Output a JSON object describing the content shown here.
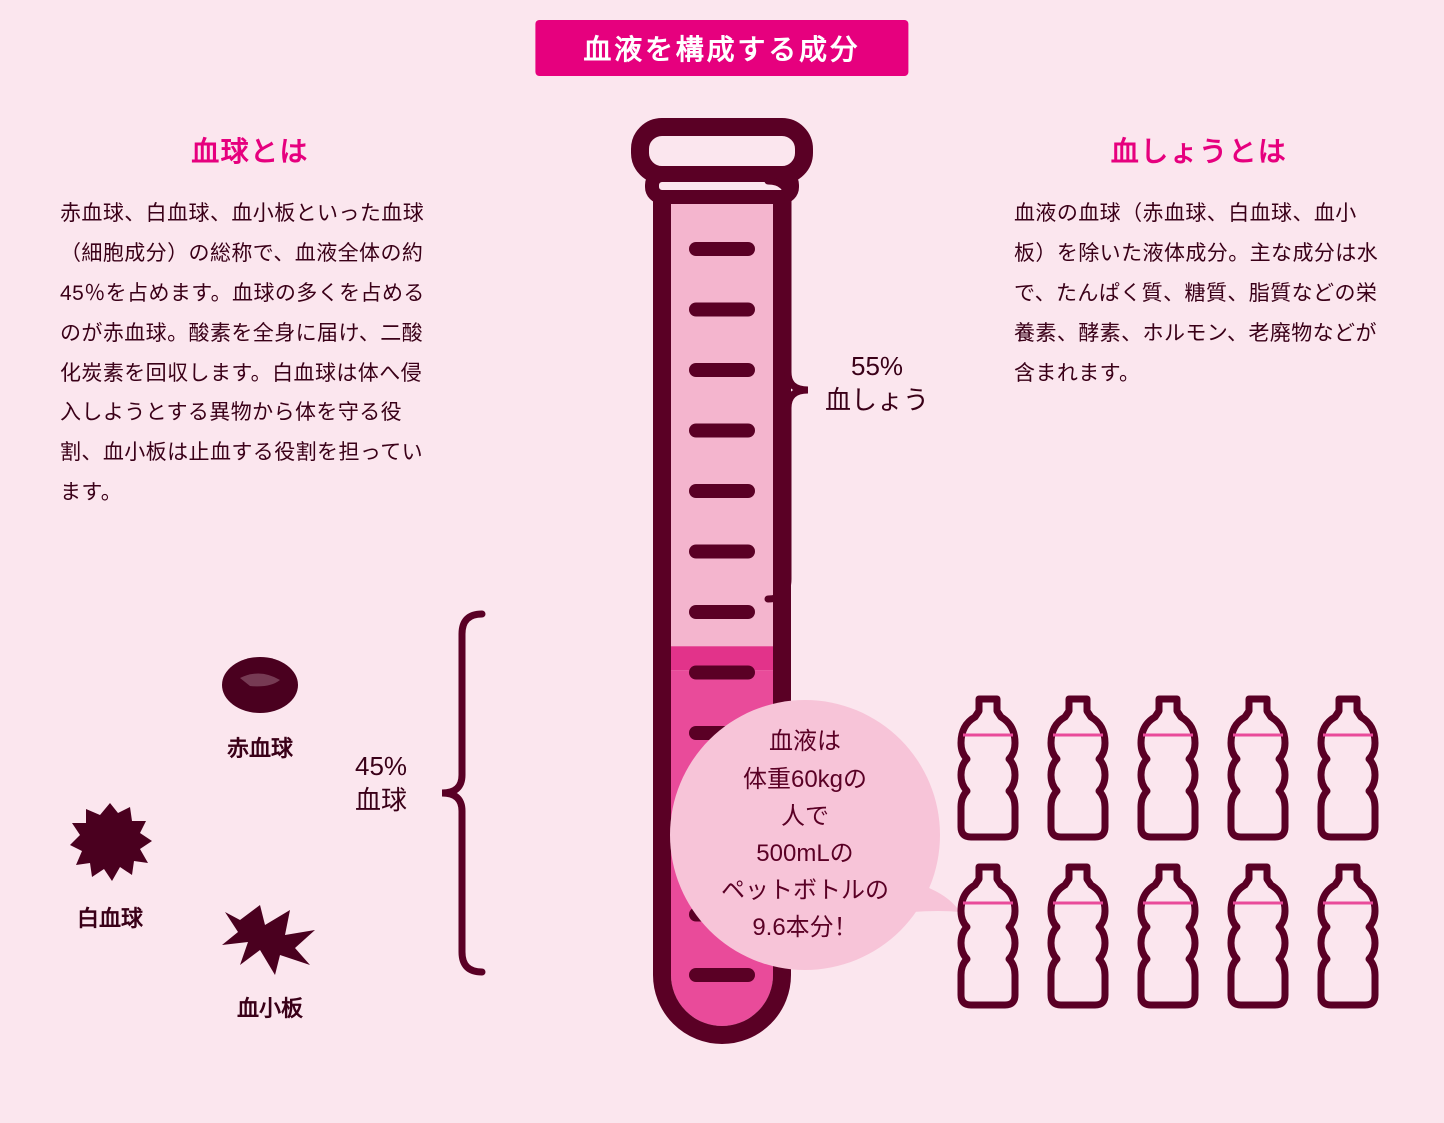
{
  "colors": {
    "background": "#fbe6ee",
    "banner_bg": "#e6007e",
    "banner_text": "#ffffff",
    "heading": "#e6007e",
    "body_text": "#3a0018",
    "tube_stroke": "#5a0025",
    "plasma_fill": "#f4b5ce",
    "cells_fill": "#e94b9a",
    "cells_mid": "#e2338a",
    "bubble_fill": "#f7c4d8",
    "bubble_text": "#5a0025",
    "cell_icon": "#4a001f",
    "bottle_stroke": "#5a0025",
    "bottle_line": "#e94b9a"
  },
  "title": "血液を構成する成分",
  "left": {
    "heading": "血球とは",
    "body": "赤血球、白血球、血小板といった血球（細胞成分）の総称で、血液全体の約45％を占めます。血球の多くを占めるのが赤血球。酸素を全身に届け、二酸化炭素を回収します。白血球は体へ侵入しようとする異物から体を守る役割、血小板は止血する役割を担っています。"
  },
  "right": {
    "heading": "血しょうとは",
    "body": "血液の血球（赤血球、白血球、血小板）を除いた液体成分。主な成分は水で、たんぱく質、糖質、脂質などの栄養素、酵素、ホルモン、老廃物などが含まれます。"
  },
  "tube": {
    "plasma_pct": 55,
    "cells_pct": 45,
    "plasma_label_line1": "55%",
    "plasma_label_line2": "血しょう",
    "cells_label_line1": "45%",
    "cells_label_line2": "血球",
    "tick_count": 13
  },
  "cells": {
    "rbc": "赤血球",
    "wbc": "白血球",
    "platelet": "血小板"
  },
  "bubble": {
    "line1": "血液は",
    "line2": "体重60kgの",
    "line3": "人で",
    "line4": "500mLの",
    "line5": "ペットボトルの",
    "line6": "9.6本分！"
  },
  "bottles": {
    "row1_count": 5,
    "row2_count": 5
  }
}
